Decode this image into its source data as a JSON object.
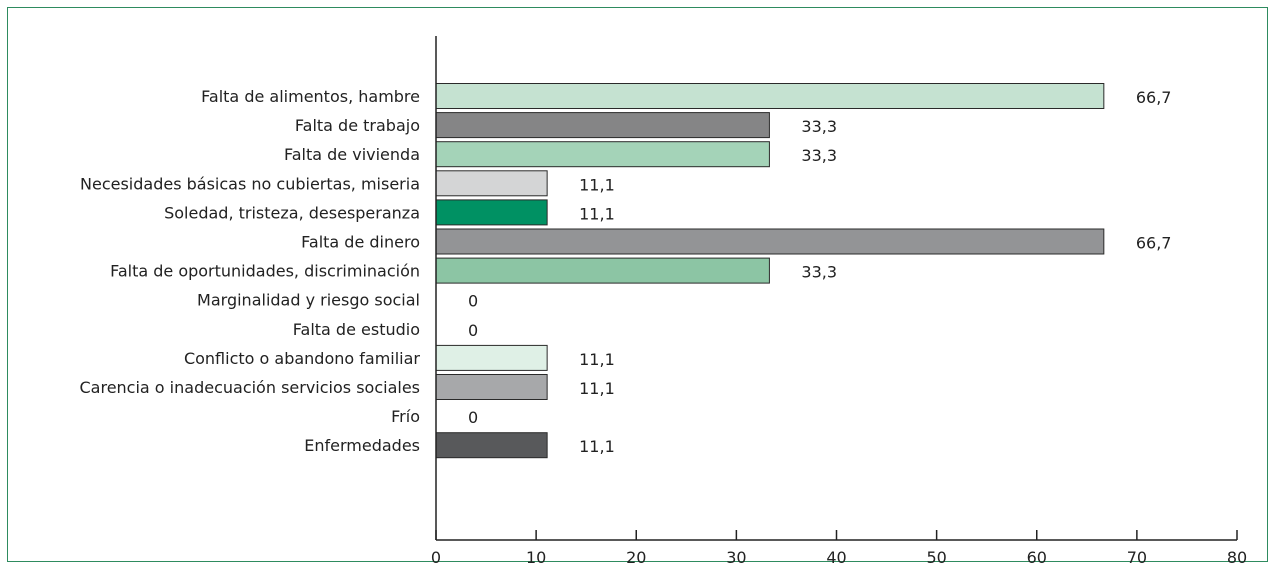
{
  "chart_data": {
    "type": "bar",
    "orientation": "horizontal",
    "categories": [
      "Falta de alimentos, hambre",
      "Falta de trabajo",
      "Falta de vivienda",
      "Necesidades básicas no cubiertas, miseria",
      "Soledad, tristeza, desesperanza",
      "Falta de dinero",
      "Falta de oportunidades, discriminación",
      "Marginalidad y riesgo social",
      "Falta de estudio",
      "Conflicto o abandono familiar",
      "Carencia o inadecuación servicios sociales",
      "Frío",
      "Enfermedades"
    ],
    "values": [
      66.7,
      33.3,
      33.3,
      11.1,
      11.1,
      66.7,
      33.3,
      0,
      0,
      11.1,
      11.1,
      0,
      11.1
    ],
    "value_labels": [
      "66,7",
      "33,3",
      "33,3",
      "11,1",
      "11,1",
      "66,7",
      "33,3",
      "0",
      "0",
      "11,1",
      "11,1",
      "0",
      "11,1"
    ],
    "colors": [
      "#c5e2d1",
      "#858586",
      "#a4d3b8",
      "#d4d5d6",
      "#009163",
      "#939496",
      "#8cc5a4",
      "#ffffff",
      "#ffffff",
      "#dff0e6",
      "#a7a8aa",
      "#ffffff",
      "#58595b"
    ],
    "xlim": [
      0,
      80
    ],
    "xticks": [
      0,
      10,
      20,
      30,
      40,
      50,
      60,
      70,
      80
    ],
    "xtick_labels": [
      "0",
      "10",
      "20",
      "30",
      "40",
      "50",
      "60",
      "70",
      "80"
    ],
    "title": "",
    "xlabel": "",
    "ylabel": "",
    "grid": false
  }
}
